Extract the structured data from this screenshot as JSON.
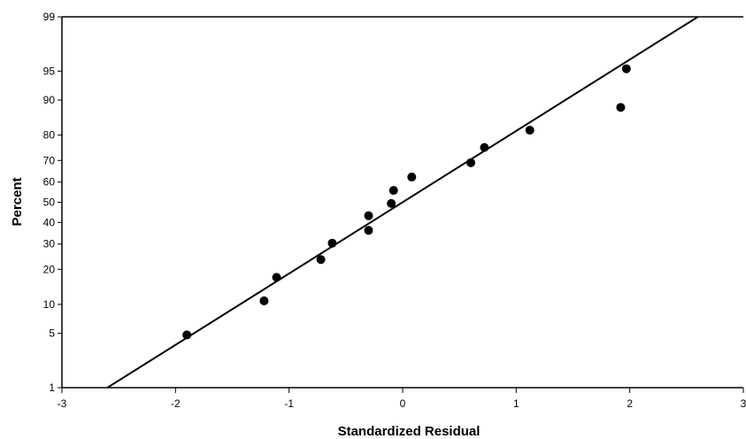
{
  "chart_data": {
    "type": "scatter",
    "title": "",
    "xlabel": "Standardized Residual",
    "ylabel": "Percent",
    "xlim": [
      -3,
      3
    ],
    "ylim": [
      1,
      99
    ],
    "y_scale": "normal-probability",
    "x_ticks": [
      -3,
      -2,
      -1,
      0,
      1,
      2,
      3
    ],
    "y_ticks": [
      1,
      5,
      10,
      20,
      30,
      40,
      50,
      60,
      70,
      80,
      90,
      95,
      99
    ],
    "grid": false,
    "points": [
      {
        "x": -1.9,
        "y": 4.8
      },
      {
        "x": -1.22,
        "y": 10.8
      },
      {
        "x": -1.11,
        "y": 17.3
      },
      {
        "x": -0.72,
        "y": 23.6
      },
      {
        "x": -0.62,
        "y": 30.4
      },
      {
        "x": -0.3,
        "y": 36.2
      },
      {
        "x": -0.3,
        "y": 43.3
      },
      {
        "x": -0.1,
        "y": 49.4
      },
      {
        "x": -0.08,
        "y": 55.9
      },
      {
        "x": 0.08,
        "y": 62.4
      },
      {
        "x": 0.6,
        "y": 69.0
      },
      {
        "x": 0.72,
        "y": 75.4
      },
      {
        "x": 1.12,
        "y": 81.7
      },
      {
        "x": 1.92,
        "y": 88.3
      },
      {
        "x": 1.97,
        "y": 95.3
      }
    ],
    "fit_line": {
      "x1": -2.6,
      "y1": 1,
      "x2": 2.6,
      "y2": 99
    },
    "colors": {
      "marker": "#000000",
      "line": "#000000",
      "axis": "#000000"
    }
  }
}
